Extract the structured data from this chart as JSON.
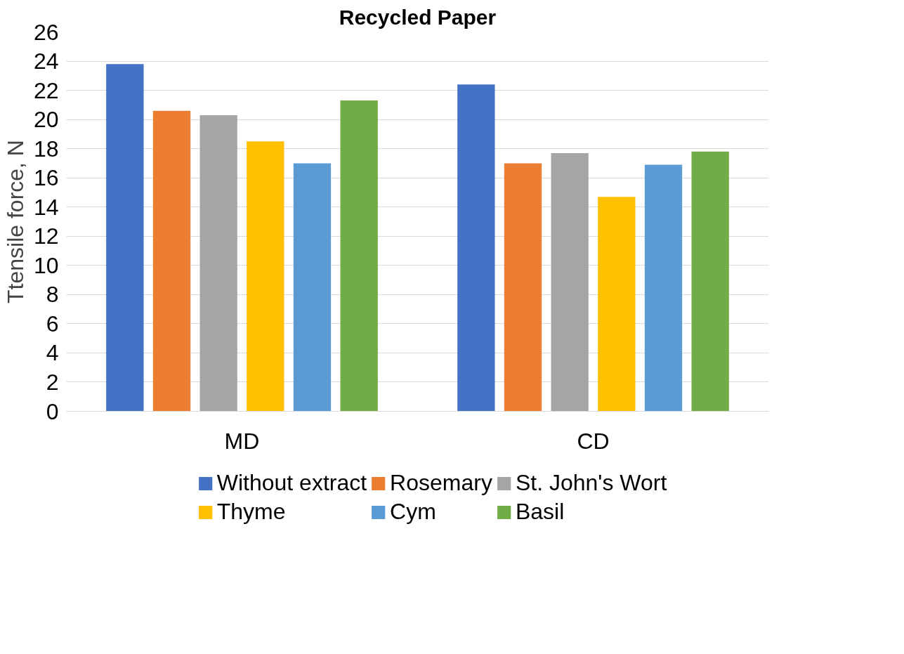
{
  "chart_data": {
    "type": "bar",
    "title": "Recycled Paper",
    "ylabel": "Ttensile force, N",
    "categories": [
      "MD",
      "CD"
    ],
    "series": [
      {
        "name": "Without extract",
        "color": "#4472c4",
        "values": [
          23.8,
          22.4
        ]
      },
      {
        "name": "Rosemary",
        "color": "#ed7d31",
        "values": [
          20.6,
          17.0
        ]
      },
      {
        "name": "St. John's Wort",
        "color": "#a5a5a5",
        "values": [
          20.3,
          17.7
        ]
      },
      {
        "name": "Thyme",
        "color": "#ffc000",
        "values": [
          18.5,
          14.7
        ]
      },
      {
        "name": "Cym",
        "color": "#5b9bd5",
        "values": [
          17.0,
          16.9
        ]
      },
      {
        "name": "Basil",
        "color": "#70ad47",
        "values": [
          21.3,
          17.8
        ]
      }
    ],
    "ylim": [
      0,
      26
    ],
    "yticks": [
      0,
      2,
      4,
      6,
      8,
      10,
      12,
      14,
      16,
      18,
      20,
      22,
      24,
      26
    ],
    "grid": "y",
    "legend": "bottom"
  }
}
